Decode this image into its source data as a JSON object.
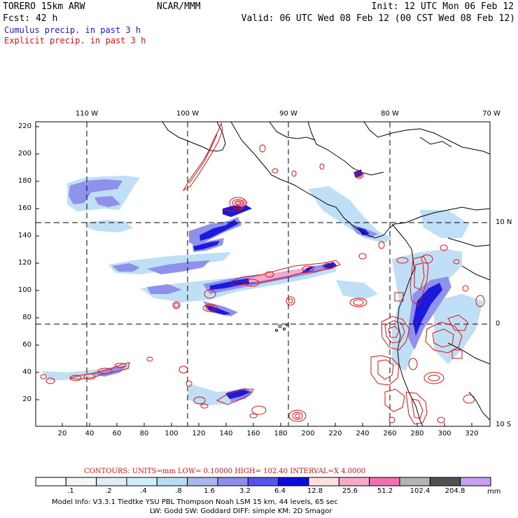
{
  "header": {
    "model_name": "TORERO  15km ARW",
    "org": "NCAR/MMM",
    "init": "Init: 12 UTC Mon 06 Feb 12",
    "forecast": "Fcst:   42 h",
    "valid": "Valid: 06 UTC Wed 08 Feb 12 (00 CST Wed 08 Feb 12)",
    "legend_cumulus": "Cumulus precip. in past 3 h",
    "legend_explicit": "Explicit precip. in past 3 h"
  },
  "colors": {
    "cumulus": "#1a1adc",
    "explicit": "#e01010"
  },
  "map": {
    "top_lon_labels": [
      "110 W",
      "100 W",
      "90 W",
      "80 W",
      "70 W"
    ],
    "right_lat_labels": [
      "10 N",
      "0",
      "10 S"
    ],
    "x_ticks": [
      "20",
      "40",
      "60",
      "80",
      "100",
      "120",
      "140",
      "160",
      "180",
      "200",
      "220",
      "240",
      "260",
      "280",
      "300",
      "320"
    ],
    "y_ticks": [
      "220",
      "200",
      "180",
      "160",
      "140",
      "120",
      "100",
      "80",
      "60",
      "40",
      "20"
    ]
  },
  "contour_info": {
    "text": "CONTOURS:  UNITS=mm  LOW= 0.10000      HIGH=  102.40      INTERVAL=X  4.0000"
  },
  "colorbar": {
    "colors": [
      "#ffffff",
      "#f4f8fb",
      "#e2ecf6",
      "#d0eef8",
      "#b8dcf4",
      "#a8b8ec",
      "#8c8cec",
      "#5454e8",
      "#0c0ce0",
      "#ffe0e0",
      "#f5aac8",
      "#f070b0",
      "#b4b4b4",
      "#505050",
      "#c8a0f0"
    ],
    "labels": [
      ".1",
      ".2",
      ".4",
      ".8",
      "1.6",
      "3.2",
      "6.4",
      "12.8",
      "25.6",
      "51.2",
      "102.4",
      "204.8"
    ],
    "units": "mm"
  },
  "model_info": {
    "line1": "Model Info: V3.3.1    Tiedtke YSU PBL  Thompson    Noah LSM  15 km,    44 levels,    65 sec",
    "line2": "LW: Godd SW: Goddard DIFF: simple KM: 2D Smagor"
  }
}
